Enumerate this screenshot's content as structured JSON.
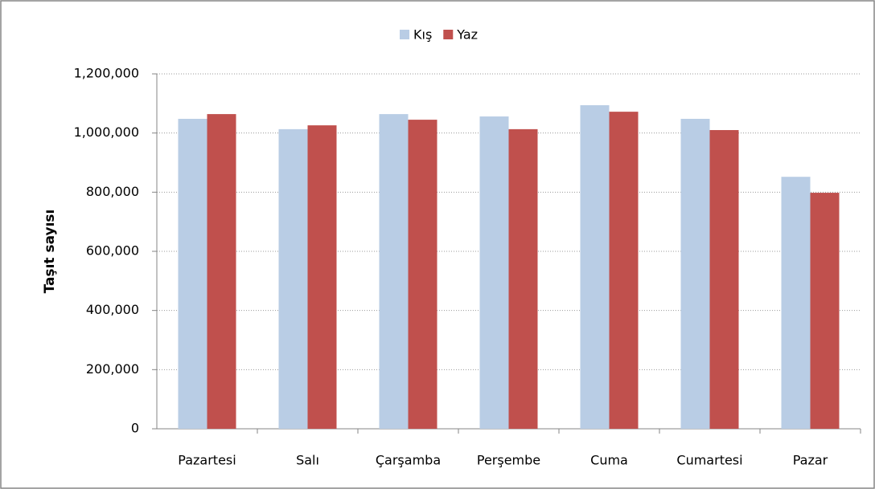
{
  "chart_data": {
    "type": "bar",
    "categories": [
      "Pazartesi",
      "Salı",
      "Çarşamba",
      "Perşembe",
      "Cuma",
      "Cumartesi",
      "Pazar"
    ],
    "series": [
      {
        "name": "Kış",
        "color": "#b9cde5",
        "values": [
          1048000,
          1013000,
          1064000,
          1056000,
          1094000,
          1048000,
          852000
        ]
      },
      {
        "name": "Yaz",
        "color": "#c0504d",
        "values": [
          1064000,
          1026000,
          1045000,
          1013000,
          1072000,
          1010000,
          798000
        ]
      }
    ],
    "y_label": "Taşıt sayısı",
    "ylim": [
      0,
      1200000
    ],
    "yticks": [
      0,
      {
        "value": 200000,
        "label": "200,000"
      },
      {
        "value": 400000,
        "label": "400,000"
      },
      {
        "value": 600000,
        "label": "600,000"
      },
      {
        "value": 800000,
        "label": "800,000"
      },
      {
        "value": 1000000,
        "label": "1,000,000"
      },
      {
        "value": 1200000,
        "label": "1,200,000"
      }
    ],
    "grid": true,
    "legend": "top"
  }
}
